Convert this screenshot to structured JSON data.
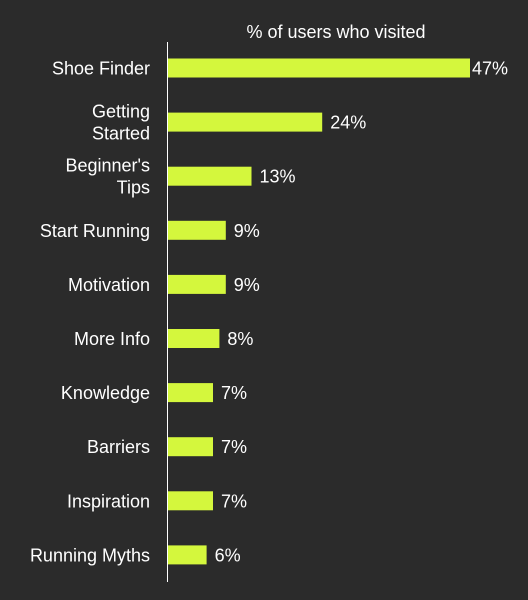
{
  "chart_data": {
    "type": "bar",
    "orientation": "horizontal",
    "title": "% of users who visited",
    "categories": [
      "Shoe Finder",
      "Getting Started",
      "Beginner's Tips",
      "Start Running",
      "Motivation",
      "More Info",
      "Knowledge",
      "Barriers",
      "Inspiration",
      "Running Myths"
    ],
    "category_lines": [
      [
        "Shoe Finder"
      ],
      [
        "Getting",
        "Started"
      ],
      [
        "Beginner's",
        "Tips"
      ],
      [
        "Start Running"
      ],
      [
        "Motivation"
      ],
      [
        "More Info"
      ],
      [
        "Knowledge"
      ],
      [
        "Barriers"
      ],
      [
        "Inspiration"
      ],
      [
        "Running Myths"
      ]
    ],
    "values": [
      47,
      24,
      13,
      9,
      9,
      8,
      7,
      7,
      7,
      6
    ],
    "value_labels": [
      "47%",
      "24%",
      "13%",
      "9%",
      "9%",
      "8%",
      "7%",
      "7%",
      "7%",
      "6%"
    ],
    "xlim": [
      0,
      47
    ],
    "grid": false,
    "legend": "none",
    "colors": {
      "background": "#2b2b2b",
      "bar": "#d4f73d",
      "text": "#ffffff",
      "axis": "#ffffff"
    }
  }
}
